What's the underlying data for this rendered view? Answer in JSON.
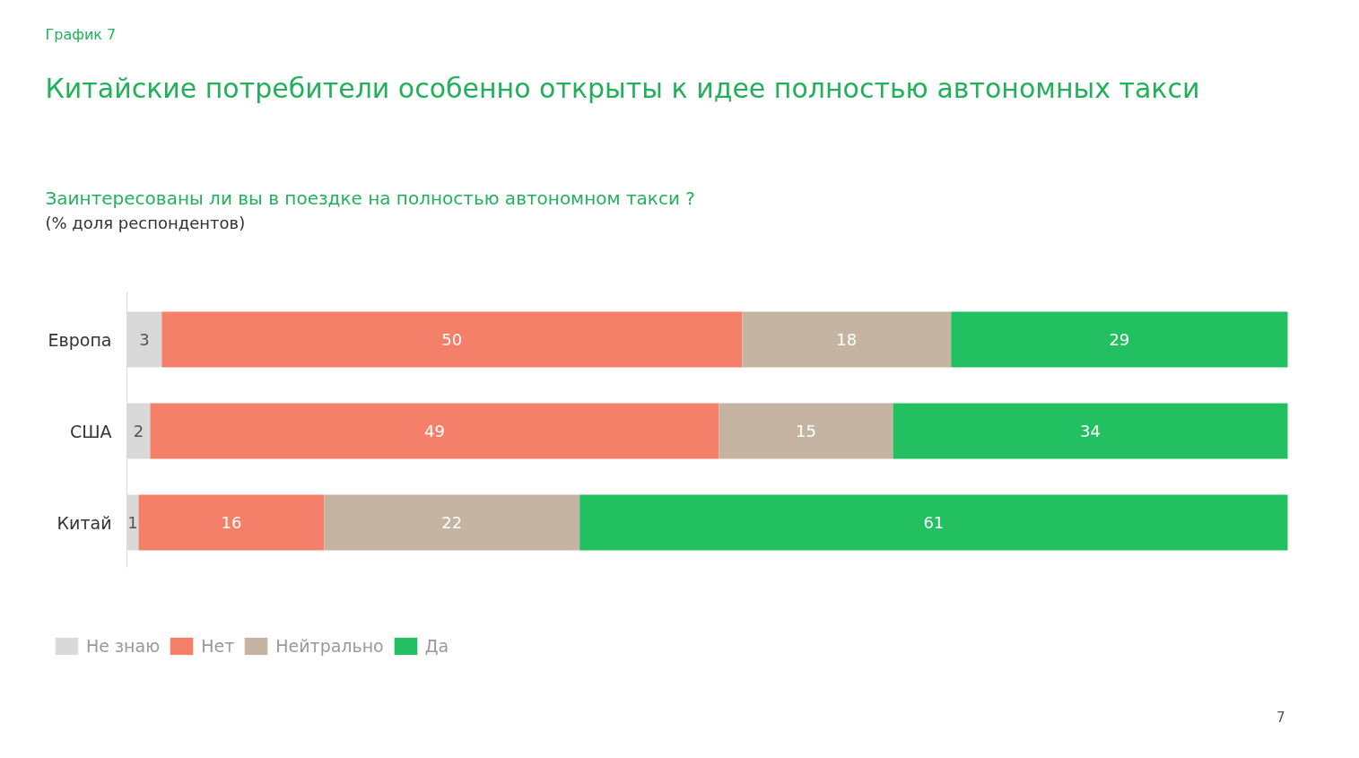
{
  "chart_data": {
    "type": "bar",
    "orientation": "horizontal",
    "stacked": true,
    "title": "Китайские потребители особенно открыты к идее полностью автономных такси",
    "subtitle": "Заинтересованы ли вы в поездке на полностью автономном такси ?",
    "annotations": [
      "График 7",
      "(% доля респондентов)",
      "7"
    ],
    "categories": [
      "Европа",
      "США",
      "Китай"
    ],
    "series": [
      {
        "name": "Не знаю",
        "color": "#d9d9d9",
        "values": [
          3,
          2,
          1
        ]
      },
      {
        "name": "Нет",
        "color": "#f4806a",
        "values": [
          50,
          49,
          16
        ]
      },
      {
        "name": "Нейтрально",
        "color": "#c4b4a1",
        "values": [
          18,
          15,
          22
        ]
      },
      {
        "name": "Да",
        "color": "#22c060",
        "values": [
          29,
          34,
          61
        ]
      }
    ],
    "xlim": [
      0,
      100
    ],
    "data_labels": true,
    "tick_labels": "y",
    "legend": "bottom left"
  }
}
